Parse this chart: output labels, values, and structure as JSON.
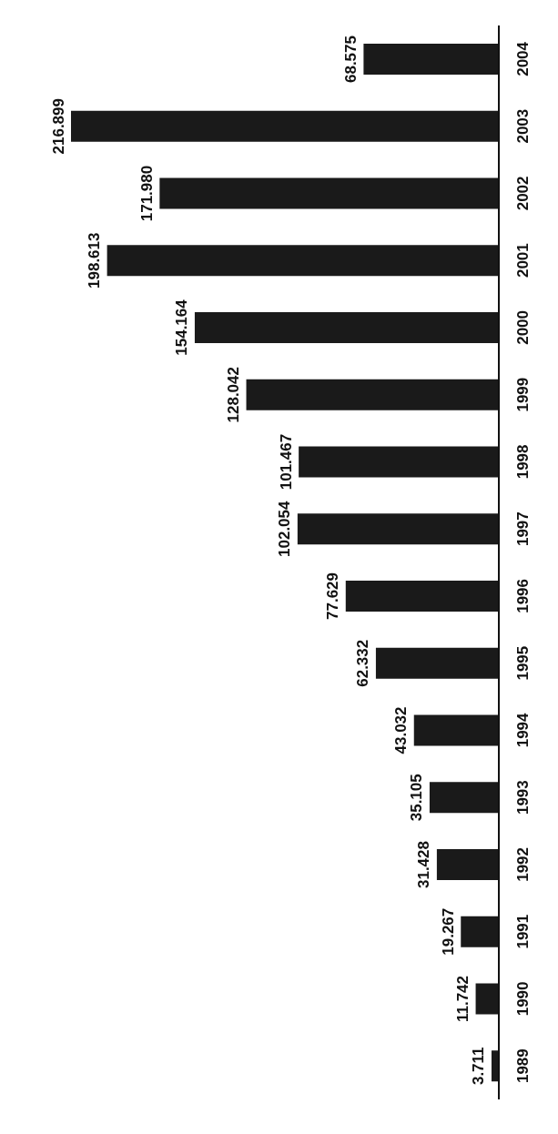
{
  "chart_data": {
    "type": "bar",
    "orientation": "horizontal",
    "categories": [
      "2004",
      "2003",
      "2002",
      "2001",
      "2000",
      "1999",
      "1998",
      "1997",
      "1996",
      "1995",
      "1994",
      "1993",
      "1992",
      "1991",
      "1990",
      "1989"
    ],
    "values": [
      68.575,
      216.899,
      171.98,
      198.613,
      154.164,
      128.042,
      101.467,
      102.054,
      77.629,
      62.332,
      43.032,
      35.105,
      31.428,
      19.267,
      11.742,
      3.711
    ],
    "value_labels": [
      "68.575",
      "216.899",
      "171.980",
      "198.613",
      "154.164",
      "128.042",
      "101.467",
      "102.054",
      "77.629",
      "62.332",
      "43.032",
      "35.105",
      "31.428",
      "19.267",
      "11.742",
      "3.711"
    ],
    "color": "#1a1a1a"
  }
}
